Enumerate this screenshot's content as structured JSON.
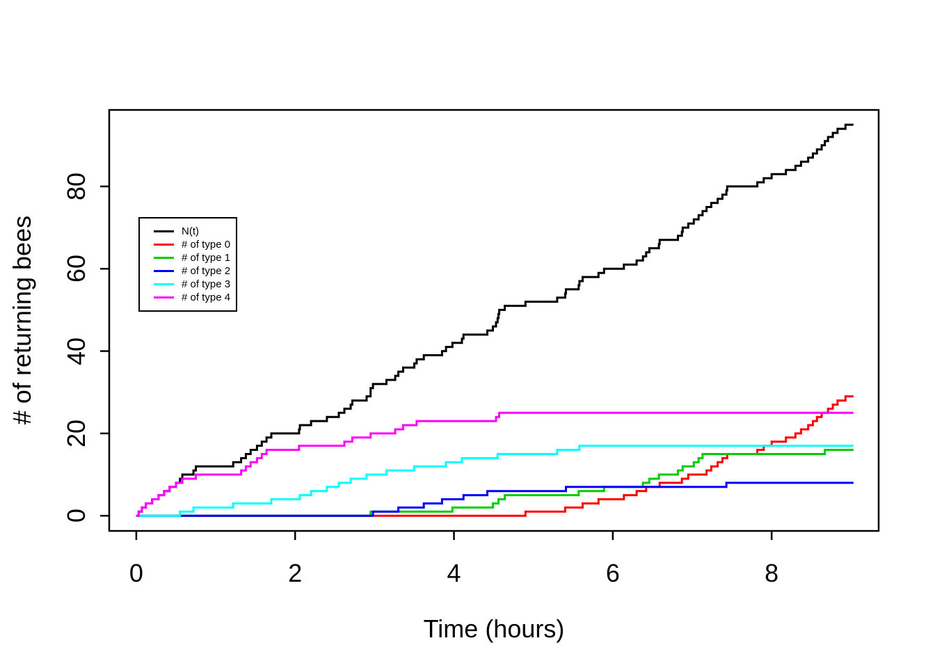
{
  "chart_data": {
    "type": "line",
    "subtype": "step-counting-process",
    "title": "",
    "xlabel": "Time (hours)",
    "ylabel": "# of returning bees",
    "x_ticks": [
      0,
      2,
      4,
      6,
      8
    ],
    "y_ticks": [
      0,
      20,
      40,
      60,
      80
    ],
    "xlim": [
      -0.36,
      9.36
    ],
    "ylim": [
      -3.8,
      98.8
    ],
    "t_end": 9.03,
    "grid": false,
    "legend_position": "upper-left-inside",
    "series": [
      {
        "name": "N(t)",
        "color": "#000000",
        "start_value": 0,
        "final_value": 95,
        "derived": "sum_of_types",
        "jump_times": []
      },
      {
        "name": "# of type 0",
        "color": "#FF0000",
        "start_value": 0,
        "final_value": 29,
        "jump_times": [
          4.9,
          5.4,
          5.62,
          5.82,
          6.14,
          6.3,
          6.42,
          6.59,
          6.87,
          6.95,
          7.18,
          7.24,
          7.32,
          7.38,
          7.44,
          7.82,
          7.9,
          8.0,
          8.18,
          8.3,
          8.37,
          8.46,
          8.52,
          8.57,
          8.63,
          8.71,
          8.77,
          8.83,
          8.93
        ]
      },
      {
        "name": "# of type 1",
        "color": "#00CD00",
        "start_value": 0,
        "final_value": 16,
        "jump_times": [
          2.95,
          3.98,
          4.49,
          4.56,
          4.64,
          5.57,
          5.89,
          6.38,
          6.46,
          6.58,
          6.82,
          6.88,
          7.02,
          7.08,
          7.13,
          8.67
        ]
      },
      {
        "name": "# of type 2",
        "color": "#0000FF",
        "start_value": 0,
        "final_value": 8,
        "jump_times": [
          2.98,
          3.3,
          3.62,
          3.85,
          4.12,
          4.42,
          5.41,
          7.43
        ]
      },
      {
        "name": "# of type 3",
        "color": "#00FFFF",
        "start_value": 0,
        "final_value": 17,
        "jump_times": [
          0.55,
          0.72,
          1.22,
          1.7,
          2.06,
          2.2,
          2.4,
          2.55,
          2.7,
          2.9,
          3.15,
          3.5,
          3.9,
          4.1,
          4.55,
          5.3,
          5.58
        ]
      },
      {
        "name": "# of type 4",
        "color": "#FF00FF",
        "start_value": 0,
        "final_value": 25,
        "jump_times": [
          0.03,
          0.07,
          0.12,
          0.2,
          0.28,
          0.35,
          0.42,
          0.5,
          0.58,
          0.75,
          1.32,
          1.38,
          1.44,
          1.52,
          1.58,
          1.64,
          2.05,
          2.62,
          2.72,
          2.95,
          3.26,
          3.36,
          3.53,
          4.53,
          4.57
        ]
      }
    ]
  },
  "colors": {
    "foreground": "#000000",
    "background": "#FFFFFF"
  }
}
